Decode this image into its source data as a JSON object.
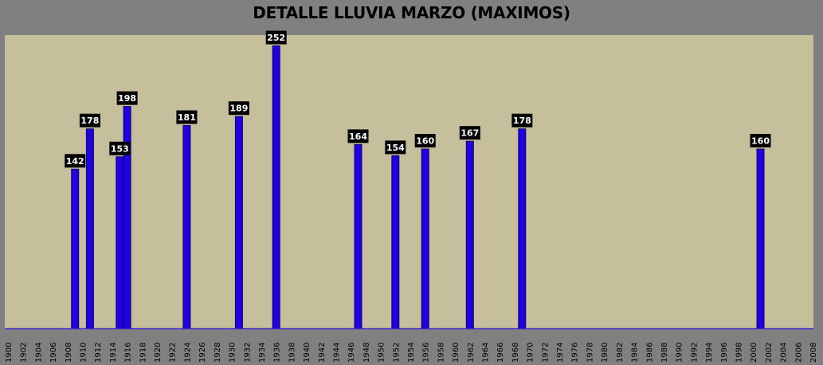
{
  "chart_data": {
    "type": "bar",
    "title": "DETALLE LLUVIA MARZO (MAXIMOS)",
    "x_range": [
      1900,
      2008
    ],
    "tick_labels": [
      "1900",
      "1902",
      "1904",
      "1906",
      "1908",
      "1910",
      "1912",
      "1914",
      "1916",
      "1918",
      "1920",
      "1922",
      "1924",
      "1926",
      "1928",
      "1930",
      "1932",
      "1934",
      "1936",
      "1938",
      "1940",
      "1942",
      "1944",
      "1946",
      "1948",
      "1950",
      "1952",
      "1954",
      "1956",
      "1958",
      "1960",
      "1962",
      "1964",
      "1966",
      "1968",
      "1970",
      "1972",
      "1974",
      "1976",
      "1978",
      "1980",
      "1982",
      "1984",
      "1986",
      "1988",
      "1990",
      "1992",
      "1994",
      "1996",
      "1998",
      "2000",
      "2002",
      "2004",
      "2006",
      "2008"
    ],
    "points": [
      {
        "year": 1909,
        "value": 142
      },
      {
        "year": 1911,
        "value": 178
      },
      {
        "year": 1915,
        "value": 153
      },
      {
        "year": 1916,
        "value": 198
      },
      {
        "year": 1924,
        "value": 181
      },
      {
        "year": 1931,
        "value": 189
      },
      {
        "year": 1936,
        "value": 252
      },
      {
        "year": 1947,
        "value": 164
      },
      {
        "year": 1952,
        "value": 154
      },
      {
        "year": 1956,
        "value": 160
      },
      {
        "year": 1962,
        "value": 167
      },
      {
        "year": 1969,
        "value": 178
      },
      {
        "year": 2001,
        "value": 160
      }
    ],
    "ylim": [
      0,
      280
    ],
    "grid": false,
    "legend": "none",
    "colors": {
      "bar": "#2100e0",
      "plot_background": "#c6bf9b",
      "chart_background": "#808080",
      "label_box": "#000000",
      "label_text": "#ffffff"
    }
  }
}
